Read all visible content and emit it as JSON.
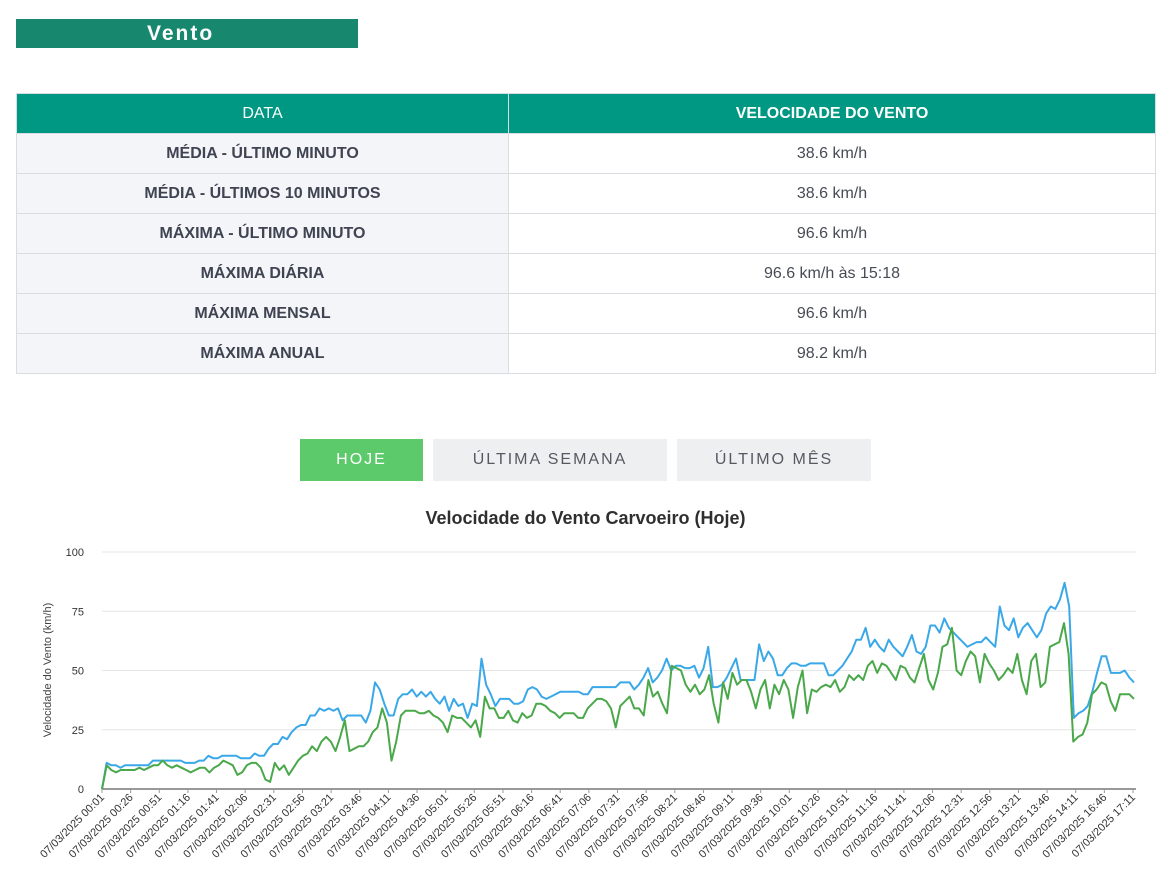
{
  "section": {
    "title": "Vento"
  },
  "table": {
    "headers": [
      "DATA",
      "VELOCIDADE DO VENTO"
    ],
    "rows": [
      {
        "label": "MÉDIA - ÚLTIMO MINUTO",
        "value": "38.6 km/h"
      },
      {
        "label": "MÉDIA - ÚLTIMOS 10 MINUTOS",
        "value": "38.6 km/h"
      },
      {
        "label": "MÁXIMA - ÚLTIMO MINUTO",
        "value": "96.6 km/h"
      },
      {
        "label": "MÁXIMA DIÁRIA",
        "value": "96.6 km/h às 15:18"
      },
      {
        "label": "MÁXIMA MENSAL",
        "value": "96.6 km/h"
      },
      {
        "label": "MÁXIMA ANUAL",
        "value": "98.2 km/h"
      }
    ]
  },
  "tabs": [
    {
      "label": "HOJE",
      "active": true
    },
    {
      "label": "ÚLTIMA SEMANA",
      "active": false
    },
    {
      "label": "ÚLTIMO MÊS",
      "active": false
    }
  ],
  "colors": {
    "header": "#009883",
    "title_bg": "#17876e",
    "active_tab": "#5cc96a",
    "series_blue": "#3aa8e8",
    "series_green": "#4aa84a"
  },
  "chart_data": {
    "type": "line",
    "title": "Velocidade do Vento Carvoeiro (Hoje)",
    "ylabel": "Velocidade do Vento (km/h)",
    "ylim": [
      0,
      100
    ],
    "yticks": [
      0,
      25,
      50,
      75,
      100
    ],
    "grid": true,
    "x_ticks": [
      "07/03/2025 00:01",
      "07/03/2025 00:26",
      "07/03/2025 00:51",
      "07/03/2025 01:16",
      "07/03/2025 01:41",
      "07/03/2025 02:06",
      "07/03/2025 02:31",
      "07/03/2025 02:56",
      "07/03/2025 03:21",
      "07/03/2025 03:46",
      "07/03/2025 04:11",
      "07/03/2025 04:36",
      "07/03/2025 05:01",
      "07/03/2025 05:26",
      "07/03/2025 05:51",
      "07/03/2025 06:16",
      "07/03/2025 06:41",
      "07/03/2025 07:06",
      "07/03/2025 07:31",
      "07/03/2025 07:56",
      "07/03/2025 08:21",
      "07/03/2025 08:46",
      "07/03/2025 09:11",
      "07/03/2025 09:36",
      "07/03/2025 10:01",
      "07/03/2025 10:26",
      "07/03/2025 10:51",
      "07/03/2025 11:16",
      "07/03/2025 11:41",
      "07/03/2025 12:06",
      "07/03/2025 12:31",
      "07/03/2025 12:56",
      "07/03/2025 13:21",
      "07/03/2025 13:46",
      "07/03/2025 14:11",
      "07/03/2025 16:46",
      "07/03/2025 17:11"
    ],
    "series": [
      {
        "color": "#3aa8e8",
        "values": [
          0,
          11,
          10,
          10,
          9,
          10,
          10,
          10,
          10,
          10,
          10,
          12,
          12,
          12,
          12,
          12,
          12,
          12,
          11,
          11,
          11,
          12,
          12,
          14,
          13,
          13,
          14,
          14,
          14,
          14,
          13,
          13,
          13,
          15,
          14,
          14,
          17,
          19,
          19,
          22,
          21,
          24,
          26,
          27,
          27,
          31,
          31,
          34,
          33,
          34,
          33,
          34,
          29,
          31,
          31,
          31,
          31,
          28,
          33,
          45,
          42,
          36,
          31,
          31,
          38,
          40,
          40,
          42,
          39,
          41,
          39,
          41,
          38,
          36,
          39,
          33,
          38,
          35,
          36,
          30,
          36,
          35,
          55,
          44,
          40,
          35,
          38,
          38,
          38,
          36,
          36,
          37,
          42,
          43,
          42,
          39,
          38,
          39,
          40,
          41,
          41,
          41,
          41,
          41,
          40,
          40,
          43,
          43,
          43,
          43,
          43,
          43,
          45,
          45,
          45,
          42,
          44,
          47,
          51,
          45,
          47,
          50,
          55,
          50,
          52,
          52,
          51,
          51,
          52,
          47,
          51,
          60,
          43,
          43,
          44,
          47,
          51,
          55,
          46,
          46,
          46,
          46,
          61,
          54,
          58,
          55,
          48,
          48,
          51,
          53,
          53,
          52,
          52,
          53,
          53,
          53,
          53,
          48,
          48,
          50,
          52,
          55,
          58,
          63,
          63,
          68,
          60,
          63,
          60,
          58,
          63,
          60,
          58,
          56,
          60,
          65,
          58,
          57,
          60,
          69,
          69,
          66,
          72,
          68,
          66,
          64,
          62,
          60,
          61,
          62,
          62,
          64,
          62,
          60,
          77,
          69,
          67,
          72,
          64,
          68,
          70,
          67,
          64,
          67,
          74,
          77,
          76,
          80,
          87,
          77,
          30,
          32,
          33,
          35,
          41,
          49,
          56,
          56,
          49,
          49,
          49,
          50,
          47,
          45
        ]
      },
      {
        "color": "#4aa84a",
        "values": [
          0,
          10,
          8,
          7,
          8,
          8,
          8,
          8,
          9,
          8,
          9,
          10,
          10,
          12,
          10,
          9,
          10,
          9,
          8,
          7,
          8,
          9,
          9,
          7,
          9,
          10,
          12,
          11,
          10,
          6,
          7,
          10,
          11,
          11,
          9,
          4,
          3,
          11,
          8,
          10,
          6,
          9,
          12,
          14,
          15,
          18,
          16,
          20,
          22,
          20,
          16,
          22,
          29,
          16,
          17,
          18,
          18,
          20,
          24,
          26,
          34,
          28,
          12,
          20,
          31,
          33,
          33,
          33,
          32,
          32,
          33,
          31,
          30,
          28,
          24,
          31,
          30,
          30,
          28,
          26,
          29,
          22,
          39,
          34,
          34,
          30,
          30,
          33,
          29,
          28,
          32,
          30,
          31,
          36,
          36,
          35,
          33,
          32,
          30,
          32,
          32,
          32,
          30,
          30,
          34,
          36,
          38,
          38,
          37,
          34,
          26,
          35,
          37,
          39,
          34,
          34,
          31,
          46,
          39,
          41,
          36,
          32,
          52,
          51,
          50,
          44,
          41,
          44,
          40,
          42,
          48,
          36,
          28,
          45,
          38,
          49,
          44,
          46,
          46,
          41,
          34,
          42,
          46,
          34,
          44,
          40,
          46,
          42,
          30,
          43,
          50,
          32,
          42,
          41,
          43,
          44,
          43,
          46,
          41,
          43,
          48,
          46,
          48,
          46,
          52,
          54,
          49,
          53,
          52,
          49,
          46,
          52,
          51,
          47,
          45,
          51,
          57,
          46,
          42,
          49,
          60,
          61,
          68,
          50,
          48,
          54,
          58,
          56,
          45,
          57,
          53,
          50,
          46,
          48,
          51,
          49,
          57,
          46,
          40,
          54,
          57,
          43,
          45,
          60,
          61,
          62,
          70,
          57,
          20,
          22,
          23,
          28,
          40,
          42,
          45,
          44,
          37,
          33,
          40,
          40,
          40,
          38
        ]
      }
    ]
  }
}
